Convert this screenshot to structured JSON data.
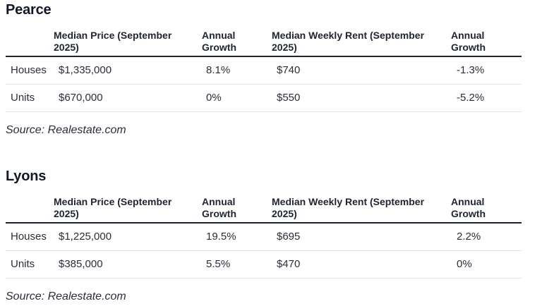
{
  "sections": [
    {
      "title": "Pearce",
      "headers": {
        "price": "Median Price (September 2025)",
        "price_growth": "Annual Growth",
        "rent": "Median Weekly Rent (September 2025)",
        "rent_growth": "Annual Growth"
      },
      "rows": [
        {
          "type": "Houses",
          "price": "$1,335,000",
          "price_growth": "8.1%",
          "rent": "$740",
          "rent_growth": "-1.3%"
        },
        {
          "type": "Units",
          "price": "$670,000",
          "price_growth": "0%",
          "rent": "$550",
          "rent_growth": "-5.2%"
        }
      ],
      "source": "Source: Realestate.com"
    },
    {
      "title": "Lyons",
      "headers": {
        "price": "Median Price (September 2025)",
        "price_growth": "Annual Growth",
        "rent": "Median Weekly Rent (September 2025)",
        "rent_growth": "Annual Growth"
      },
      "rows": [
        {
          "type": "Houses",
          "price": "$1,225,000",
          "price_growth": "19.5%",
          "rent": "$695",
          "rent_growth": "2.2%"
        },
        {
          "type": "Units",
          "price": "$385,000",
          "price_growth": "5.5%",
          "rent": "$470",
          "rent_growth": "0%"
        }
      ],
      "source": "Source: Realestate.com"
    }
  ]
}
